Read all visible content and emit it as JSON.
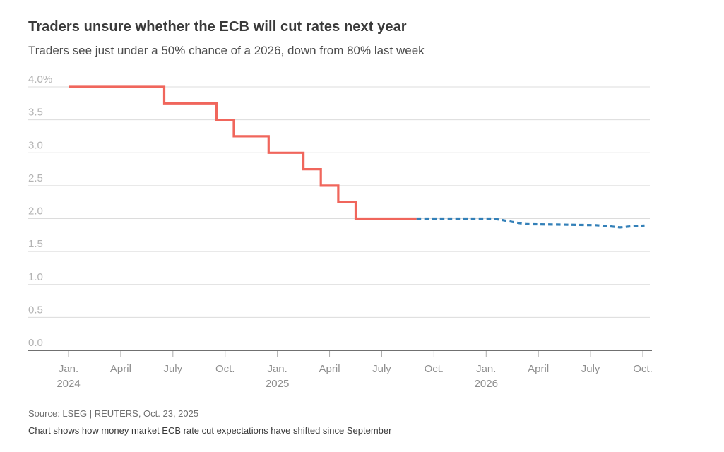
{
  "header": {
    "title": "Traders unsure whether the ECB will cut rates next year",
    "subtitle": "Traders see just under a 50% chance of a 2026, down from 80% last week"
  },
  "footer": {
    "source": "Source: LSEG | REUTERS, Oct. 23, 2025",
    "note": "Chart shows how money market ECB rate cut expectations have shifted since September"
  },
  "chart_data": {
    "type": "line",
    "title": "Traders unsure whether the ECB will cut rates next year",
    "subtitle": "Traders see just under a 50% chance of a 2026, down from 80% last week",
    "xlabel": "",
    "ylabel": "",
    "ylim": [
      0,
      4
    ],
    "x_unit": "months since Jan. 2024",
    "grid": true,
    "legend_position": "none",
    "colors": {
      "actual": "#f0665c",
      "forecast": "#3380b8",
      "grid": "#dcdcdc",
      "axis": "#404040",
      "tick": "#aaaaaa",
      "y_labels": "#b3b3b3",
      "x_labels": "#8e8e8e"
    },
    "yticks": [
      {
        "v": 4.0,
        "label": "4.0%"
      },
      {
        "v": 3.5,
        "label": "3.5"
      },
      {
        "v": 3.0,
        "label": "3.0"
      },
      {
        "v": 2.5,
        "label": "2.5"
      },
      {
        "v": 2.0,
        "label": "2.0"
      },
      {
        "v": 1.5,
        "label": "1.5"
      },
      {
        "v": 1.0,
        "label": "1.0"
      },
      {
        "v": 0.5,
        "label": "0.5"
      },
      {
        "v": 0.0,
        "label": "0.0"
      }
    ],
    "xticks": [
      {
        "m": 0,
        "label": "Jan.",
        "year": "2024"
      },
      {
        "m": 3,
        "label": "April",
        "year": ""
      },
      {
        "m": 6,
        "label": "July",
        "year": ""
      },
      {
        "m": 9,
        "label": "Oct.",
        "year": ""
      },
      {
        "m": 12,
        "label": "Jan.",
        "year": "2025"
      },
      {
        "m": 15,
        "label": "April",
        "year": ""
      },
      {
        "m": 18,
        "label": "July",
        "year": ""
      },
      {
        "m": 21,
        "label": "Oct.",
        "year": ""
      },
      {
        "m": 24,
        "label": "Jan.",
        "year": "2026"
      },
      {
        "m": 27,
        "label": "April",
        "year": ""
      },
      {
        "m": 30,
        "label": "July",
        "year": ""
      },
      {
        "m": 33,
        "label": "Oct.",
        "year": ""
      }
    ],
    "series": [
      {
        "name": "ecb-policy-rate-actual",
        "color_key": "actual",
        "line_style": "solid",
        "step": true,
        "points": [
          [
            0,
            4.0
          ],
          [
            5.5,
            4.0
          ],
          [
            5.5,
            3.75
          ],
          [
            8.5,
            3.75
          ],
          [
            8.5,
            3.5
          ],
          [
            9.5,
            3.5
          ],
          [
            9.5,
            3.25
          ],
          [
            11.5,
            3.25
          ],
          [
            11.5,
            3.0
          ],
          [
            13.5,
            3.0
          ],
          [
            13.5,
            2.75
          ],
          [
            14.5,
            2.75
          ],
          [
            14.5,
            2.5
          ],
          [
            15.5,
            2.5
          ],
          [
            15.5,
            2.25
          ],
          [
            16.5,
            2.25
          ],
          [
            16.5,
            2.0
          ],
          [
            20.0,
            2.0
          ]
        ]
      },
      {
        "name": "market-implied-rate-forecast",
        "color_key": "forecast",
        "line_style": "dashed",
        "step": false,
        "points": [
          [
            20.0,
            2.0
          ],
          [
            24.3,
            2.0
          ],
          [
            24.9,
            1.98
          ],
          [
            25.5,
            1.95
          ],
          [
            26.3,
            1.915
          ],
          [
            28.0,
            1.91
          ],
          [
            30.3,
            1.9
          ],
          [
            31.0,
            1.885
          ],
          [
            31.7,
            1.867
          ],
          [
            32.3,
            1.882
          ],
          [
            33.1,
            1.895
          ]
        ]
      }
    ]
  }
}
